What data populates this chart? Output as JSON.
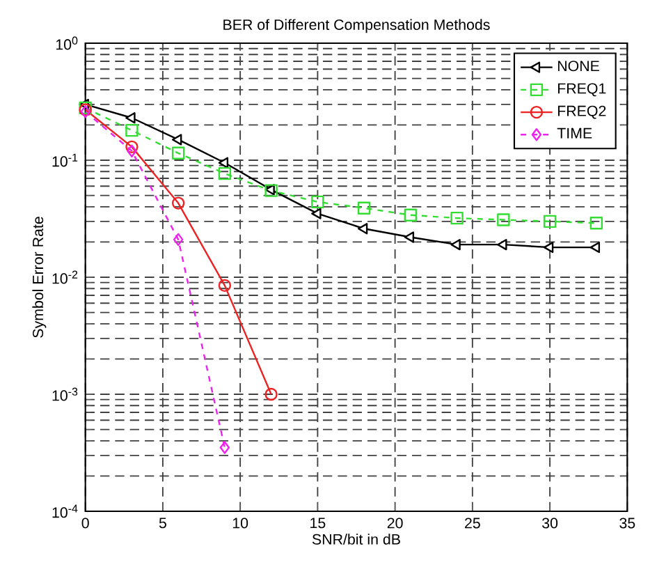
{
  "chart_data": {
    "type": "line",
    "title": "BER of Different Compensation Methods",
    "xlabel": "SNR/bit in dB",
    "ylabel": "Symbol Error Rate",
    "x": [
      0,
      3,
      6,
      9,
      12,
      15,
      18,
      21,
      24,
      27,
      30,
      33
    ],
    "series": [
      {
        "name": "NONE",
        "color": "#000000",
        "marker": "triangle",
        "line_style": "solid",
        "values": [
          0.3,
          0.23,
          0.15,
          0.095,
          0.056,
          0.035,
          0.026,
          0.022,
          0.019,
          0.019,
          0.018,
          0.018
        ]
      },
      {
        "name": "FREQ1",
        "color": "#33dd33",
        "marker": "square",
        "line_style": "dashed",
        "values": [
          0.28,
          0.18,
          0.115,
          0.077,
          0.055,
          0.044,
          0.039,
          0.034,
          0.032,
          0.031,
          0.03,
          0.029
        ]
      },
      {
        "name": "FREQ2",
        "color": "#ee2222",
        "marker": "circle",
        "line_style": "solid",
        "values": [
          0.27,
          0.13,
          0.043,
          0.0085,
          0.001,
          null,
          null,
          null,
          null,
          null,
          null,
          null
        ]
      },
      {
        "name": "TIME",
        "color": "#ee22ee",
        "marker": "diamond",
        "line_style": "dashed",
        "values": [
          0.26,
          0.12,
          0.021,
          0.00035,
          null,
          null,
          null,
          null,
          null,
          null,
          null,
          null
        ]
      }
    ],
    "xlim": [
      0,
      35
    ],
    "xticks": [
      0,
      5,
      10,
      15,
      20,
      25,
      30,
      35
    ],
    "ylim": [
      0.0001,
      1
    ],
    "yticks": [
      {
        "value": 0.0001,
        "label": "10$^{-4}$"
      },
      {
        "value": 0.001,
        "label": "10$^{-3}$"
      },
      {
        "value": 0.01,
        "label": "10$^{-2}$"
      },
      {
        "value": 0.1,
        "label": "10$^{-1}$"
      },
      {
        "value": 1,
        "label": "10$^{0}$"
      }
    ],
    "log": "y",
    "grid": true,
    "legend": "top right"
  }
}
